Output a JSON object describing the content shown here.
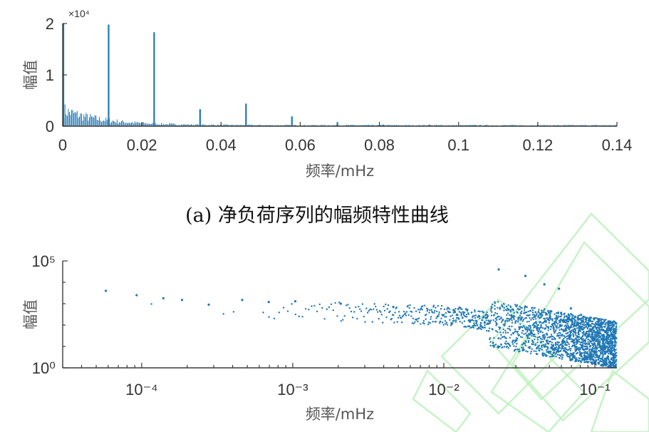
{
  "colors": {
    "series": "#1f77b4",
    "axis": "#3a3a3a",
    "watermark": "#b8f0b8"
  },
  "chart_data": [
    {
      "type": "line",
      "panel": "a",
      "caption": "(a)  净负荷序列的幅频特性曲线",
      "xlabel": "频率/mHz",
      "ylabel": "幅值",
      "y_scale_exponent": "×10⁴",
      "xlim": [
        0,
        0.14
      ],
      "ylim": [
        0,
        2
      ],
      "x_ticks": [
        "0",
        "0.02",
        "0.04",
        "0.06",
        "0.08",
        "0.1",
        "0.12",
        "0.14"
      ],
      "y_ticks": [
        "0",
        "1",
        "2"
      ],
      "grid": false,
      "series": [
        {
          "x": [
            0.0,
            0.0116,
            0.0231,
            0.0347,
            0.0463,
            0.0579,
            0.0694,
            0.081,
            0.0926,
            0.1042
          ],
          "values": [
            2.0,
            1.98,
            1.83,
            0.33,
            0.44,
            0.19,
            0.08,
            0.03,
            0.03,
            0.02
          ]
        }
      ],
      "baseline_noise": {
        "x_end": 0.14,
        "start_value": 0.35,
        "end_value": 0.02
      }
    },
    {
      "type": "scatter",
      "panel": "b",
      "xlabel": "频率/mHz",
      "ylabel": "幅值",
      "x_scale": "log",
      "y_scale": "log",
      "xlim": [
        3e-05,
        0.14
      ],
      "ylim": [
        1,
        100000
      ],
      "x_ticks": [
        "10⁻⁴",
        "10⁻³",
        "10⁻²",
        "10⁻¹"
      ],
      "y_ticks": [
        "10⁰",
        "10⁵"
      ],
      "grid": false,
      "series": [
        {
          "x": [
            5.79e-05,
            9.26e-05,
            0.000139,
            0.000185,
            0.000278,
            0.000463,
            0.000694,
            0.00104,
            0.00208,
            0.00463,
            0.0116,
            0.0231,
            0.0347,
            0.0463,
            0.0579,
            0.0694,
            0.081,
            0.0926
          ],
          "values": [
            4000,
            2500,
            1800,
            1500,
            900,
            1500,
            1200,
            1300,
            1000,
            700,
            500,
            40000,
            20000,
            8000,
            5000,
            600,
            300,
            200
          ]
        }
      ],
      "trend": {
        "x_start": 0.0001,
        "x_end": 0.14,
        "start_value": 900,
        "mid_x": 0.012,
        "mid_value": 300,
        "end_value": 15
      }
    }
  ]
}
